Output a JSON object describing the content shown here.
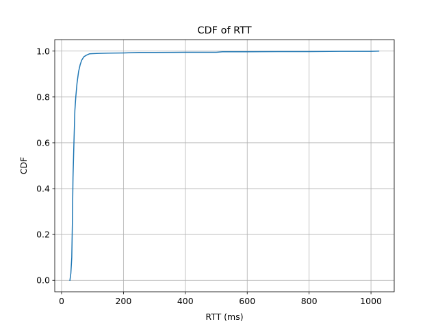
{
  "chart_data": {
    "type": "line",
    "title": "CDF of RTT",
    "xlabel": "RTT (ms)",
    "ylabel": "CDF",
    "xlim": [
      -22,
      1075
    ],
    "ylim": [
      -0.05,
      1.05
    ],
    "xticks": [
      0,
      200,
      400,
      600,
      800,
      1000
    ],
    "xtick_labels": [
      "0",
      "200",
      "400",
      "600",
      "800",
      "1000"
    ],
    "yticks": [
      0.0,
      0.2,
      0.4,
      0.6,
      0.8,
      1.0
    ],
    "ytick_labels": [
      "0.0",
      "0.2",
      "0.4",
      "0.6",
      "0.8",
      "1.0"
    ],
    "grid": true,
    "series": [
      {
        "color": "#1f77b4",
        "x": [
          27,
          30,
          33,
          35,
          37,
          40,
          43,
          46,
          50,
          55,
          60,
          65,
          72,
          80,
          90,
          100,
          120,
          150,
          200,
          250,
          300,
          400,
          500,
          520,
          600,
          700,
          800,
          900,
          1000,
          1025
        ],
        "y": [
          0.0,
          0.03,
          0.1,
          0.25,
          0.45,
          0.6,
          0.74,
          0.8,
          0.86,
          0.91,
          0.94,
          0.96,
          0.975,
          0.982,
          0.988,
          0.989,
          0.99,
          0.991,
          0.992,
          0.994,
          0.994,
          0.995,
          0.995,
          0.997,
          0.997,
          0.998,
          0.998,
          0.999,
          0.999,
          1.0
        ]
      }
    ]
  }
}
